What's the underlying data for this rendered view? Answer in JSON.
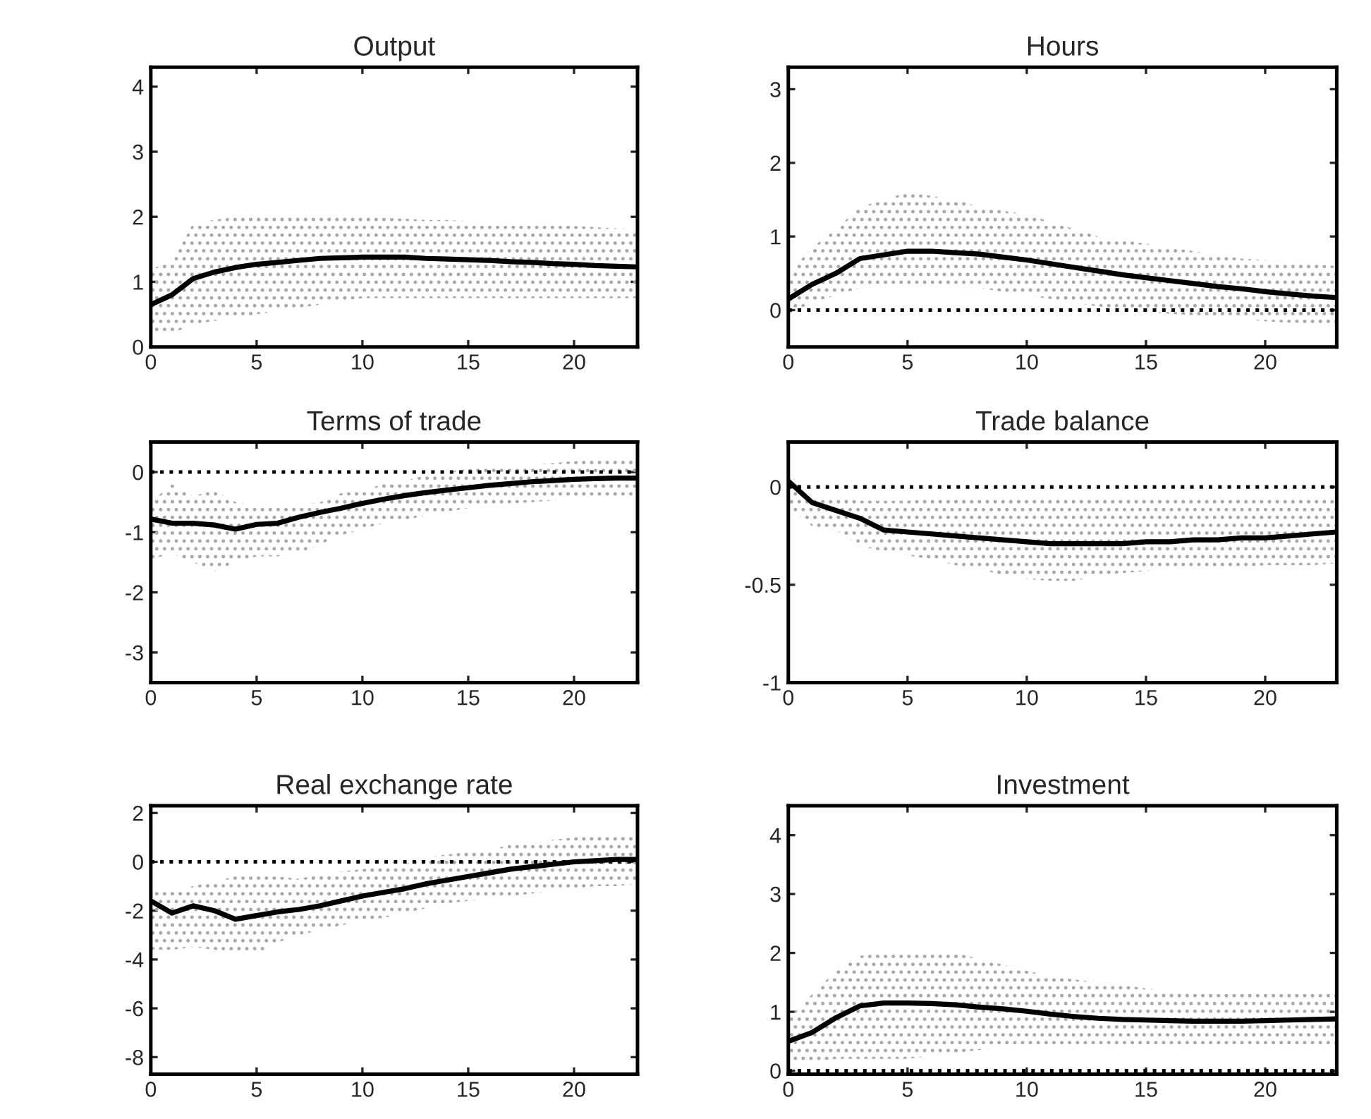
{
  "chart_data": [
    {
      "type": "line",
      "title": "Output",
      "x": [
        0,
        1,
        2,
        3,
        4,
        5,
        6,
        7,
        8,
        9,
        10,
        11,
        12,
        13,
        14,
        15,
        16,
        17,
        18,
        19,
        20,
        21,
        22,
        23
      ],
      "xlim": [
        0,
        23
      ],
      "xticks": [
        0,
        5,
        10,
        15,
        20
      ],
      "ylim": [
        0,
        4.3
      ],
      "yticks": [
        0,
        1,
        2,
        3,
        4
      ],
      "line_style": "solid",
      "marker": "none",
      "series": [
        {
          "color": "#000000",
          "values": [
            0.65,
            0.8,
            1.05,
            1.15,
            1.22,
            1.27,
            1.3,
            1.33,
            1.36,
            1.37,
            1.38,
            1.38,
            1.38,
            1.36,
            1.35,
            1.34,
            1.33,
            1.31,
            1.3,
            1.28,
            1.27,
            1.25,
            1.24,
            1.23
          ],
          "upper": [
            1.2,
            1.3,
            1.9,
            1.95,
            2.0,
            2.0,
            2.0,
            2.0,
            2.0,
            2.0,
            2.0,
            1.98,
            1.97,
            1.95,
            1.95,
            1.93,
            1.92,
            1.9,
            1.9,
            1.88,
            1.86,
            1.84,
            1.82,
            1.8
          ],
          "lower": [
            0.2,
            0.2,
            0.35,
            0.4,
            0.45,
            0.5,
            0.55,
            0.6,
            0.65,
            0.7,
            0.75,
            0.75,
            0.75,
            0.75,
            0.75,
            0.75,
            0.75,
            0.75,
            0.75,
            0.75,
            0.75,
            0.75,
            0.75,
            0.75
          ]
        }
      ]
    },
    {
      "type": "line",
      "title": "Hours",
      "x": [
        0,
        1,
        2,
        3,
        4,
        5,
        6,
        7,
        8,
        9,
        10,
        11,
        12,
        13,
        14,
        15,
        16,
        17,
        18,
        19,
        20,
        21,
        22,
        23
      ],
      "xlim": [
        0,
        23
      ],
      "xticks": [
        0,
        5,
        10,
        15,
        20
      ],
      "ylim": [
        -0.5,
        3.3
      ],
      "yticks": [
        0,
        1,
        2,
        3
      ],
      "line_style": "solid",
      "marker": "none",
      "series": [
        {
          "color": "#000000",
          "values": [
            0.15,
            0.35,
            0.5,
            0.7,
            0.75,
            0.8,
            0.8,
            0.78,
            0.76,
            0.72,
            0.68,
            0.63,
            0.58,
            0.53,
            0.48,
            0.44,
            0.4,
            0.36,
            0.32,
            0.29,
            0.25,
            0.22,
            0.19,
            0.17
          ],
          "upper": [
            0.5,
            0.85,
            1.1,
            1.4,
            1.5,
            1.6,
            1.55,
            1.5,
            1.4,
            1.35,
            1.3,
            1.2,
            1.1,
            1.0,
            0.95,
            0.9,
            0.85,
            0.8,
            0.75,
            0.7,
            0.68,
            0.65,
            0.62,
            0.6
          ],
          "lower": [
            -0.05,
            0.1,
            0.2,
            0.3,
            0.35,
            0.35,
            0.35,
            0.3,
            0.3,
            0.25,
            0.2,
            0.15,
            0.1,
            0.05,
            0.0,
            -0.02,
            -0.05,
            -0.07,
            -0.1,
            -0.12,
            -0.15,
            -0.17,
            -0.18,
            -0.2
          ]
        }
      ],
      "ref_lines": [
        {
          "axis": "y",
          "value": 0,
          "color": "#000000",
          "line_style": "dotted"
        }
      ]
    },
    {
      "type": "line",
      "title": "Terms of trade",
      "x": [
        0,
        1,
        2,
        3,
        4,
        5,
        6,
        7,
        8,
        9,
        10,
        11,
        12,
        13,
        14,
        15,
        16,
        17,
        18,
        19,
        20,
        21,
        22,
        23
      ],
      "xlim": [
        0,
        23
      ],
      "xticks": [
        0,
        5,
        10,
        15,
        20
      ],
      "ylim": [
        -3.5,
        0.5
      ],
      "yticks": [
        -3,
        -2,
        -1,
        0
      ],
      "line_style": "solid",
      "marker": "none",
      "series": [
        {
          "color": "#000000",
          "values": [
            -0.78,
            -0.85,
            -0.85,
            -0.88,
            -0.95,
            -0.87,
            -0.85,
            -0.75,
            -0.67,
            -0.6,
            -0.52,
            -0.45,
            -0.39,
            -0.34,
            -0.3,
            -0.26,
            -0.22,
            -0.19,
            -0.16,
            -0.14,
            -0.12,
            -0.11,
            -0.1,
            -0.1
          ],
          "upper": [
            -0.5,
            -0.2,
            -0.4,
            -0.3,
            -0.5,
            -0.55,
            -0.55,
            -0.55,
            -0.5,
            -0.35,
            -0.3,
            -0.2,
            -0.15,
            -0.05,
            0,
            0.05,
            0.08,
            0.1,
            0.12,
            0.15,
            0.18,
            0.2,
            0.22,
            0.22
          ],
          "lower": [
            -1.45,
            -1.35,
            -1.5,
            -1.65,
            -1.5,
            -1.4,
            -1.4,
            -1.35,
            -1.2,
            -1.05,
            -0.95,
            -0.85,
            -0.8,
            -0.72,
            -0.66,
            -0.6,
            -0.56,
            -0.52,
            -0.5,
            -0.47,
            -0.45,
            -0.42,
            -0.42,
            -0.42
          ]
        }
      ],
      "ref_lines": [
        {
          "axis": "y",
          "value": 0,
          "color": "#000000",
          "line_style": "dotted"
        }
      ]
    },
    {
      "type": "line",
      "title": "Trade balance",
      "x": [
        0,
        1,
        2,
        3,
        4,
        5,
        6,
        7,
        8,
        9,
        10,
        11,
        12,
        13,
        14,
        15,
        16,
        17,
        18,
        19,
        20,
        21,
        22,
        23
      ],
      "xlim": [
        0,
        23
      ],
      "xticks": [
        0,
        5,
        10,
        15,
        20
      ],
      "ylim": [
        -1,
        0.23
      ],
      "yticks": [
        -1,
        -0.5,
        0
      ],
      "line_style": "solid",
      "marker": "none",
      "series": [
        {
          "color": "#000000",
          "values": [
            0.03,
            -0.08,
            -0.12,
            -0.16,
            -0.22,
            -0.23,
            -0.24,
            -0.25,
            -0.26,
            -0.27,
            -0.28,
            -0.29,
            -0.29,
            -0.29,
            -0.29,
            -0.28,
            -0.28,
            -0.27,
            -0.27,
            -0.26,
            -0.26,
            -0.25,
            -0.24,
            -0.23
          ],
          "upper": [
            0.07,
            -0.05,
            -0.06,
            -0.07,
            -0.07,
            -0.07,
            -0.06,
            -0.06,
            -0.05,
            -0.05,
            -0.06,
            -0.06,
            -0.06,
            -0.06,
            -0.06,
            -0.06,
            -0.06,
            -0.06,
            -0.06,
            -0.06,
            -0.06,
            -0.05,
            -0.05,
            -0.05
          ],
          "lower": [
            -0.1,
            -0.2,
            -0.22,
            -0.3,
            -0.33,
            -0.35,
            -0.37,
            -0.4,
            -0.42,
            -0.45,
            -0.47,
            -0.48,
            -0.48,
            -0.45,
            -0.44,
            -0.43,
            -0.42,
            -0.42,
            -0.42,
            -0.41,
            -0.4,
            -0.4,
            -0.4,
            -0.39
          ]
        }
      ],
      "ref_lines": [
        {
          "axis": "y",
          "value": 0,
          "color": "#000000",
          "line_style": "dotted"
        }
      ]
    },
    {
      "type": "line",
      "title": "Real exchange rate",
      "x": [
        0,
        1,
        2,
        3,
        4,
        5,
        6,
        7,
        8,
        9,
        10,
        11,
        12,
        13,
        14,
        15,
        16,
        17,
        18,
        19,
        20,
        21,
        22,
        23
      ],
      "xlim": [
        0,
        23
      ],
      "xticks": [
        0,
        5,
        10,
        15,
        20
      ],
      "ylim": [
        -8.7,
        2.3
      ],
      "yticks": [
        -8,
        -6,
        -4,
        -2,
        0,
        2
      ],
      "line_style": "solid",
      "marker": "none",
      "series": [
        {
          "color": "#000000",
          "values": [
            -1.6,
            -2.1,
            -1.8,
            -2.0,
            -2.35,
            -2.2,
            -2.05,
            -1.95,
            -1.8,
            -1.6,
            -1.4,
            -1.25,
            -1.1,
            -0.9,
            -0.75,
            -0.6,
            -0.45,
            -0.3,
            -0.2,
            -0.1,
            0.0,
            0.05,
            0.1,
            0.1
          ],
          "upper": [
            -1.2,
            -1.2,
            -1.0,
            -0.8,
            -0.6,
            -0.6,
            -0.6,
            -0.7,
            -0.5,
            -0.4,
            -0.3,
            -0.2,
            -0.1,
            0.2,
            0.3,
            0.4,
            0.5,
            0.7,
            0.8,
            0.9,
            1.0,
            1.05,
            1.1,
            1.1
          ],
          "lower": [
            -3.6,
            -3.6,
            -3.5,
            -3.6,
            -3.8,
            -3.8,
            -3.3,
            -3.0,
            -2.8,
            -2.6,
            -2.4,
            -2.3,
            -2.1,
            -1.9,
            -1.7,
            -1.6,
            -1.5,
            -1.4,
            -1.3,
            -1.2,
            -1.1,
            -1.0,
            -1.0,
            -0.9
          ]
        }
      ],
      "ref_lines": [
        {
          "axis": "y",
          "value": 0,
          "color": "#000000",
          "line_style": "dotted"
        }
      ]
    },
    {
      "type": "line",
      "title": "Investment",
      "x": [
        0,
        1,
        2,
        3,
        4,
        5,
        6,
        7,
        8,
        9,
        10,
        11,
        12,
        13,
        14,
        15,
        16,
        17,
        18,
        19,
        20,
        21,
        22,
        23
      ],
      "xlim": [
        0,
        23
      ],
      "xticks": [
        0,
        5,
        10,
        15,
        20
      ],
      "ylim": [
        -0.06,
        4.5
      ],
      "yticks": [
        0,
        1,
        2,
        3,
        4
      ],
      "line_style": "solid",
      "marker": "none",
      "series": [
        {
          "color": "#000000",
          "values": [
            0.5,
            0.65,
            0.9,
            1.1,
            1.15,
            1.15,
            1.14,
            1.12,
            1.08,
            1.05,
            1.01,
            0.96,
            0.92,
            0.89,
            0.87,
            0.86,
            0.85,
            0.84,
            0.84,
            0.84,
            0.85,
            0.86,
            0.87,
            0.88
          ],
          "upper": [
            0.9,
            1.3,
            1.7,
            1.95,
            2.0,
            2.0,
            2.05,
            2.0,
            1.9,
            1.8,
            1.7,
            1.6,
            1.55,
            1.5,
            1.45,
            1.4,
            1.35,
            1.3,
            1.3,
            1.3,
            1.3,
            1.3,
            1.3,
            1.3
          ],
          "lower": [
            0.1,
            0.15,
            0.2,
            0.2,
            0.2,
            0.2,
            0.25,
            0.3,
            0.35,
            0.4,
            0.4,
            0.4,
            0.4,
            0.4,
            0.4,
            0.4,
            0.4,
            0.4,
            0.4,
            0.4,
            0.4,
            0.4,
            0.4,
            0.4
          ]
        }
      ],
      "ref_lines": [
        {
          "axis": "y",
          "value": 0,
          "color": "#000000",
          "line_style": "dotted"
        }
      ]
    }
  ]
}
